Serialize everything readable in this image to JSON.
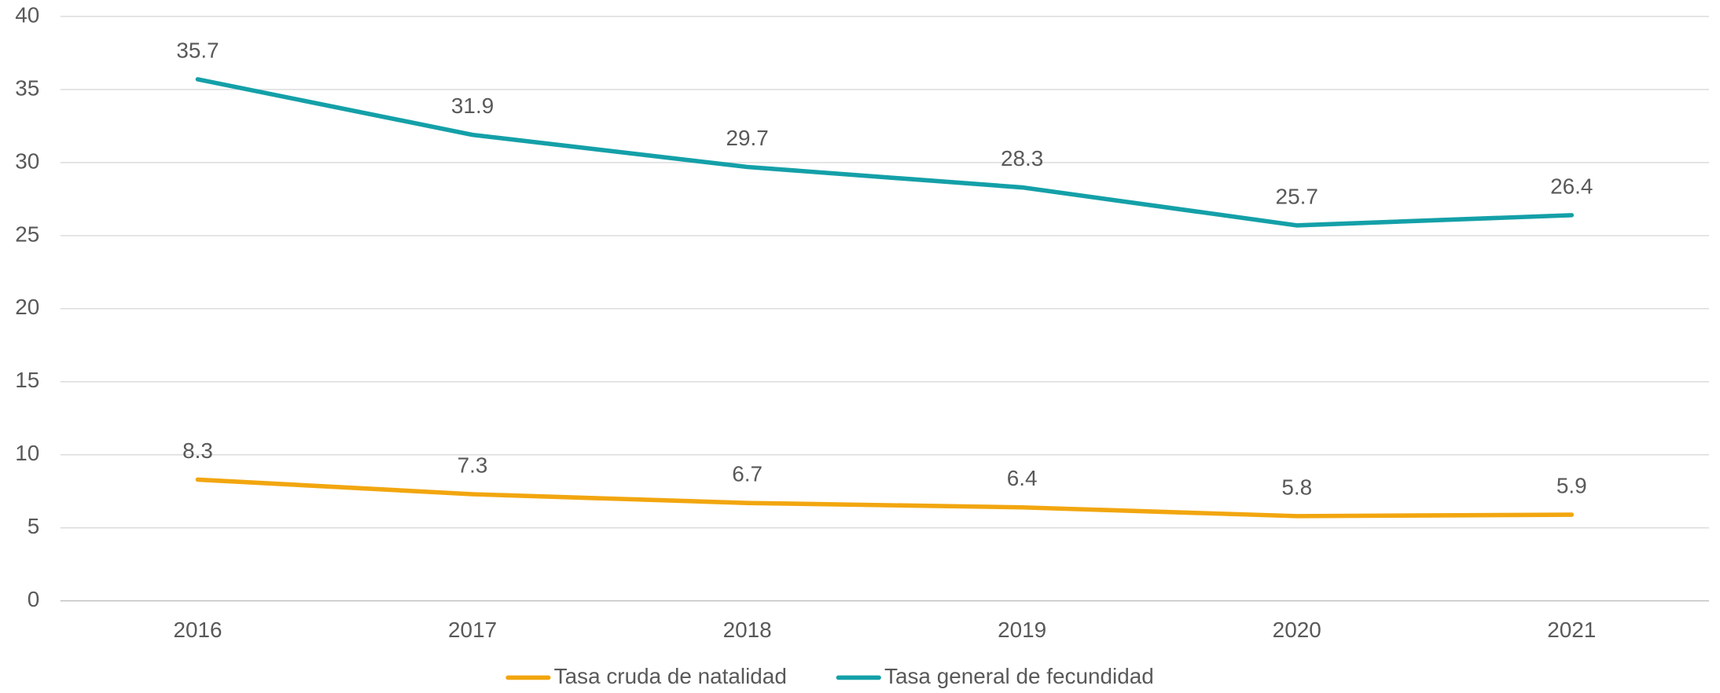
{
  "chart_data": {
    "type": "line",
    "categories": [
      "2016",
      "2017",
      "2018",
      "2019",
      "2020",
      "2021"
    ],
    "series": [
      {
        "name": "Tasa cruda de natalidad",
        "color": "#f2a60f",
        "values": [
          8.3,
          7.3,
          6.7,
          6.4,
          5.8,
          5.9
        ]
      },
      {
        "name": "Tasa general de fecundidad",
        "color": "#14a0a8",
        "values": [
          35.7,
          31.9,
          29.7,
          28.3,
          25.7,
          26.4
        ]
      }
    ],
    "ylim": [
      0,
      40
    ],
    "yticks": [
      0,
      5,
      10,
      15,
      20,
      25,
      30,
      35,
      40
    ],
    "grid": true,
    "legend": "bottom"
  }
}
